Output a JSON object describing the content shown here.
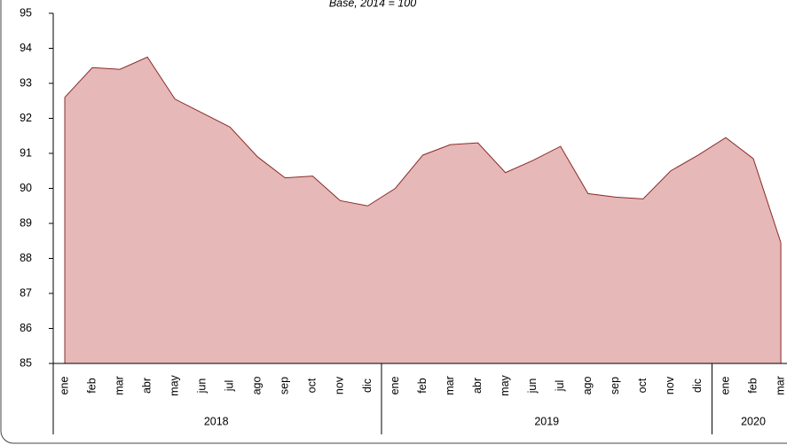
{
  "chart_data": {
    "type": "area",
    "subtitle": "Base, 2014 = 100",
    "groups": [
      {
        "name": "2018",
        "categories": [
          "ene",
          "feb",
          "mar",
          "abr",
          "may",
          "jun",
          "jul",
          "ago",
          "sep",
          "oct",
          "nov",
          "dic"
        ]
      },
      {
        "name": "2019",
        "categories": [
          "ene",
          "feb",
          "mar",
          "abr",
          "may",
          "jun",
          "jul",
          "ago",
          "sep",
          "oct",
          "nov",
          "dic"
        ]
      },
      {
        "name": "2020",
        "categories": [
          "ene",
          "feb",
          "mar"
        ]
      }
    ],
    "values": [
      92.6,
      93.45,
      93.4,
      93.75,
      92.55,
      92.15,
      91.75,
      90.9,
      90.3,
      90.35,
      89.65,
      89.5,
      90.0,
      90.95,
      91.25,
      91.3,
      90.45,
      90.8,
      91.2,
      89.85,
      89.75,
      89.7,
      90.5,
      90.95,
      91.45,
      90.85,
      88.45
    ],
    "color": "#e6b8b7",
    "line_color": "#8b2b2b",
    "ylim": [
      85,
      95
    ],
    "yticks": [
      85,
      86,
      87,
      88,
      89,
      90,
      91,
      92,
      93,
      94,
      95
    ]
  }
}
